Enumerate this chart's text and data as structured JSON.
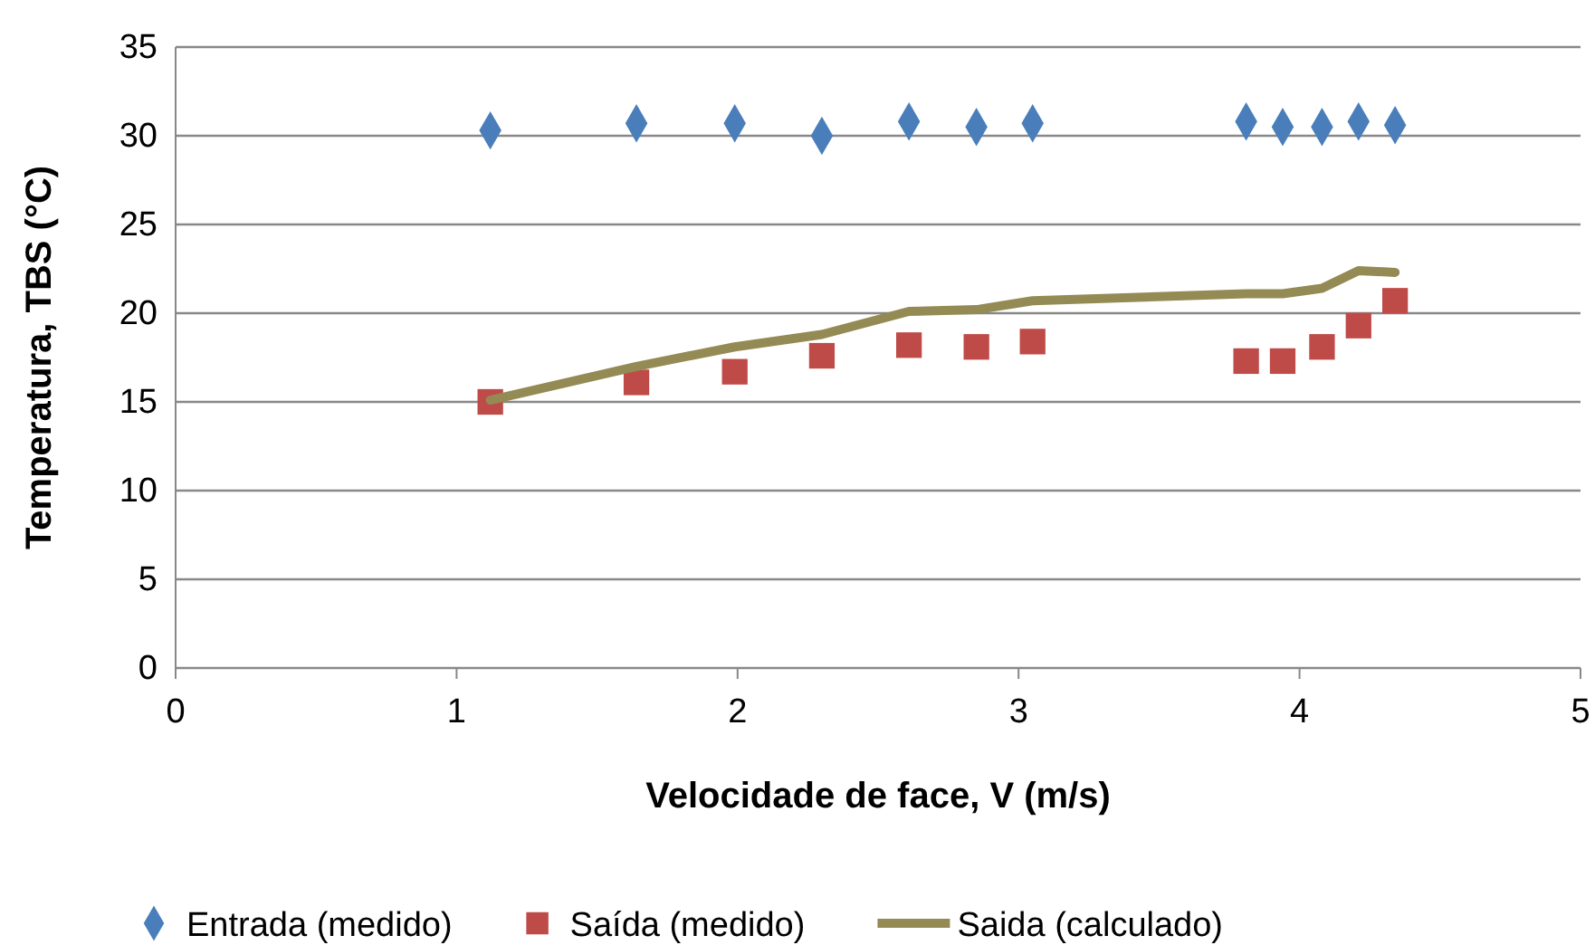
{
  "chart_data": {
    "type": "scatter",
    "xlabel": "Velocidade de face, V (m/s)",
    "ylabel": "Temperatura, TBS (°C)",
    "x": [
      1.12,
      1.64,
      1.99,
      2.3,
      2.61,
      2.85,
      3.05,
      3.81,
      3.94,
      4.08,
      4.21,
      4.34
    ],
    "series": [
      {
        "name": "Entrada (medido)",
        "color": "#4a7ebb",
        "marker": "diamond",
        "values": [
          30.3,
          30.7,
          30.7,
          30.0,
          30.8,
          30.5,
          30.7,
          30.8,
          30.5,
          30.5,
          30.8,
          30.6
        ]
      },
      {
        "name": "Saída (medido)",
        "color": "#be4b48",
        "marker": "square",
        "values": [
          15.0,
          16.1,
          16.7,
          17.6,
          18.2,
          18.1,
          18.4,
          17.3,
          17.3,
          18.1,
          19.3,
          20.7
        ]
      },
      {
        "name": "Saida (calculado)",
        "type": "line",
        "color": "#948a54",
        "marker": "none",
        "values": [
          15.1,
          17.0,
          18.1,
          18.8,
          20.1,
          20.2,
          20.7,
          21.1,
          21.1,
          21.4,
          22.4,
          22.3
        ]
      }
    ],
    "xlim": [
      0,
      5
    ],
    "xticks": [
      0,
      1,
      2,
      3,
      4,
      5
    ],
    "ylim": [
      0,
      35
    ],
    "yticks": [
      0,
      5,
      10,
      15,
      20,
      25,
      30,
      35
    ],
    "grid": "y",
    "legend": "bottom"
  }
}
